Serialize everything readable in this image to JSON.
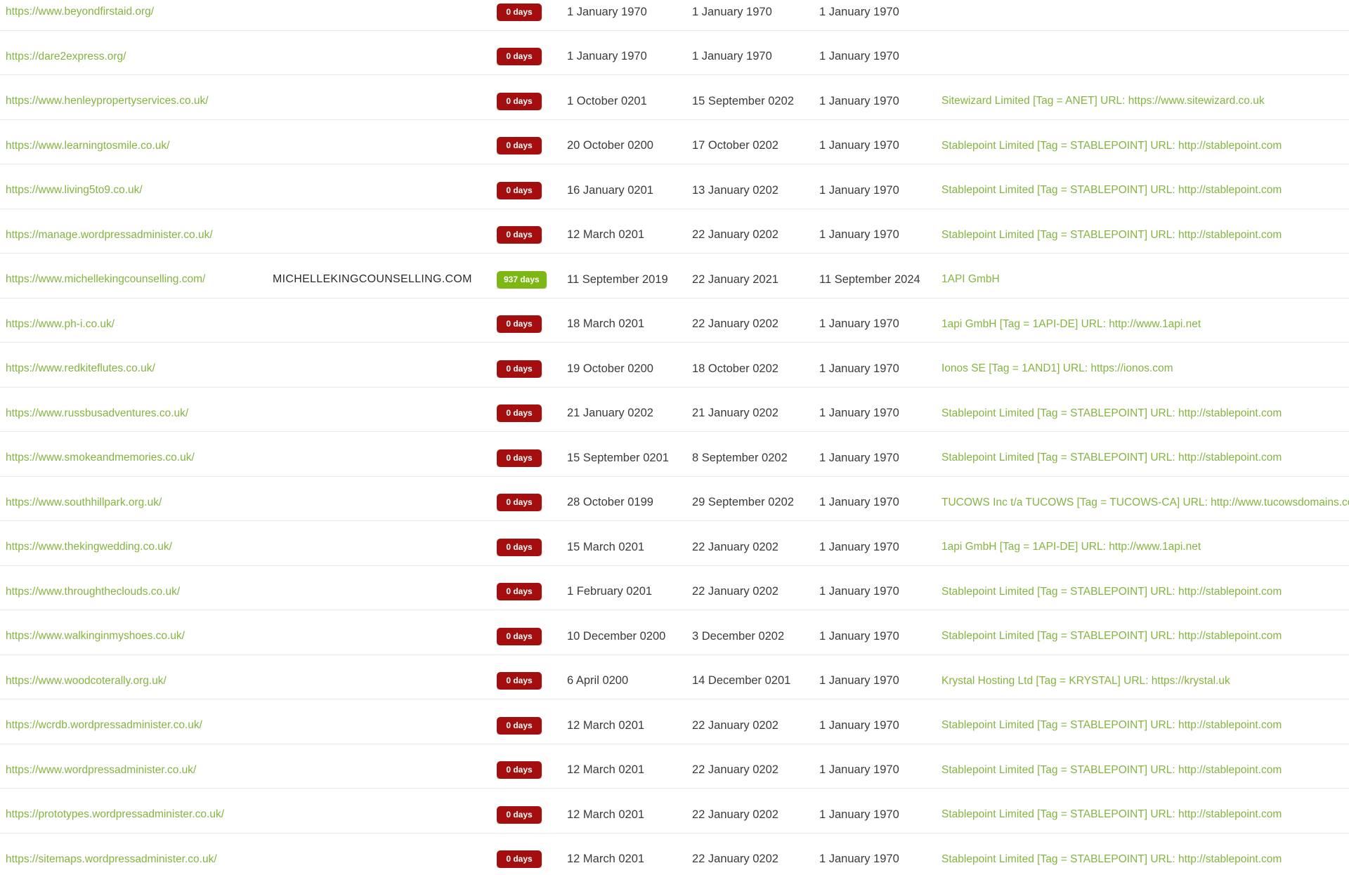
{
  "colors": {
    "link_green": "#85b440",
    "badge_red": "#a40e0e",
    "badge_green": "#7db714",
    "date_text": "#3b3b3b",
    "domain_text": "#2b2b2b",
    "row_border": "#e9e9e9"
  },
  "table": {
    "rows": [
      {
        "url": "https://www.beyondfirstaid.org/",
        "domain": "",
        "badge_label": "0 days",
        "badge_color": "badge_red",
        "date_a": "1 January 1970",
        "date_b": "1 January 1970",
        "date_c": "1 January 1970",
        "registrar": ""
      },
      {
        "url": "https://dare2express.org/",
        "domain": "",
        "badge_label": "0 days",
        "badge_color": "badge_red",
        "date_a": "1 January 1970",
        "date_b": "1 January 1970",
        "date_c": "1 January 1970",
        "registrar": ""
      },
      {
        "url": "https://www.henleypropertyservices.co.uk/",
        "domain": "",
        "badge_label": "0 days",
        "badge_color": "badge_red",
        "date_a": "1 October 0201",
        "date_b": "15 September 0202",
        "date_c": "1 January 1970",
        "registrar": "Sitewizard Limited [Tag = ANET] URL: https://www.sitewizard.co.uk"
      },
      {
        "url": "https://www.learningtosmile.co.uk/",
        "domain": "",
        "badge_label": "0 days",
        "badge_color": "badge_red",
        "date_a": "20 October 0200",
        "date_b": "17 October 0202",
        "date_c": "1 January 1970",
        "registrar": "Stablepoint Limited [Tag = STABLEPOINT] URL: http://stablepoint.com"
      },
      {
        "url": "https://www.living5to9.co.uk/",
        "domain": "",
        "badge_label": "0 days",
        "badge_color": "badge_red",
        "date_a": "16 January 0201",
        "date_b": "13 January 0202",
        "date_c": "1 January 1970",
        "registrar": "Stablepoint Limited [Tag = STABLEPOINT] URL: http://stablepoint.com"
      },
      {
        "url": "https://manage.wordpressadminister.co.uk/",
        "domain": "",
        "badge_label": "0 days",
        "badge_color": "badge_red",
        "date_a": "12 March 0201",
        "date_b": "22 January 0202",
        "date_c": "1 January 1970",
        "registrar": "Stablepoint Limited [Tag = STABLEPOINT] URL: http://stablepoint.com"
      },
      {
        "url": "https://www.michellekingcounselling.com/",
        "domain": "MICHELLEKINGCOUNSELLING.COM",
        "badge_label": "937 days",
        "badge_color": "badge_green",
        "date_a": "11 September 2019",
        "date_b": "22 January 2021",
        "date_c": "11 September 2024",
        "registrar": "1API GmbH"
      },
      {
        "url": "https://www.ph-i.co.uk/",
        "domain": "",
        "badge_label": "0 days",
        "badge_color": "badge_red",
        "date_a": "18 March 0201",
        "date_b": "22 January 0202",
        "date_c": "1 January 1970",
        "registrar": "1api GmbH [Tag = 1API-DE] URL: http://www.1api.net"
      },
      {
        "url": "https://www.redkiteflutes.co.uk/",
        "domain": "",
        "badge_label": "0 days",
        "badge_color": "badge_red",
        "date_a": "19 October 0200",
        "date_b": "18 October 0202",
        "date_c": "1 January 1970",
        "registrar": "Ionos SE [Tag = 1AND1] URL: https://ionos.com"
      },
      {
        "url": "https://www.russbusadventures.co.uk/",
        "domain": "",
        "badge_label": "0 days",
        "badge_color": "badge_red",
        "date_a": "21 January 0202",
        "date_b": "21 January 0202",
        "date_c": "1 January 1970",
        "registrar": "Stablepoint Limited [Tag = STABLEPOINT] URL: http://stablepoint.com"
      },
      {
        "url": "https://www.smokeandmemories.co.uk/",
        "domain": "",
        "badge_label": "0 days",
        "badge_color": "badge_red",
        "date_a": "15 September 0201",
        "date_b": "8 September 0202",
        "date_c": "1 January 1970",
        "registrar": "Stablepoint Limited [Tag = STABLEPOINT] URL: http://stablepoint.com"
      },
      {
        "url": "https://www.southhillpark.org.uk/",
        "domain": "",
        "badge_label": "0 days",
        "badge_color": "badge_red",
        "date_a": "28 October 0199",
        "date_b": "29 September 0202",
        "date_c": "1 January 1970",
        "registrar": "TUCOWS Inc t/a TUCOWS [Tag = TUCOWS-CA] URL: http://www.tucowsdomains.com"
      },
      {
        "url": "https://www.thekingwedding.co.uk/",
        "domain": "",
        "badge_label": "0 days",
        "badge_color": "badge_red",
        "date_a": "15 March 0201",
        "date_b": "22 January 0202",
        "date_c": "1 January 1970",
        "registrar": "1api GmbH [Tag = 1API-DE] URL: http://www.1api.net"
      },
      {
        "url": "https://www.throughtheclouds.co.uk/",
        "domain": "",
        "badge_label": "0 days",
        "badge_color": "badge_red",
        "date_a": "1 February 0201",
        "date_b": "22 January 0202",
        "date_c": "1 January 1970",
        "registrar": "Stablepoint Limited [Tag = STABLEPOINT] URL: http://stablepoint.com"
      },
      {
        "url": "https://www.walkinginmyshoes.co.uk/",
        "domain": "",
        "badge_label": "0 days",
        "badge_color": "badge_red",
        "date_a": "10 December 0200",
        "date_b": "3 December 0202",
        "date_c": "1 January 1970",
        "registrar": "Stablepoint Limited [Tag = STABLEPOINT] URL: http://stablepoint.com"
      },
      {
        "url": "https://www.woodcoterally.org.uk/",
        "domain": "",
        "badge_label": "0 days",
        "badge_color": "badge_red",
        "date_a": "6 April 0200",
        "date_b": "14 December 0201",
        "date_c": "1 January 1970",
        "registrar": "Krystal Hosting Ltd [Tag = KRYSTAL] URL: https://krystal.uk"
      },
      {
        "url": "https://wcrdb.wordpressadminister.co.uk/",
        "domain": "",
        "badge_label": "0 days",
        "badge_color": "badge_red",
        "date_a": "12 March 0201",
        "date_b": "22 January 0202",
        "date_c": "1 January 1970",
        "registrar": "Stablepoint Limited [Tag = STABLEPOINT] URL: http://stablepoint.com"
      },
      {
        "url": "https://www.wordpressadminister.co.uk/",
        "domain": "",
        "badge_label": "0 days",
        "badge_color": "badge_red",
        "date_a": "12 March 0201",
        "date_b": "22 January 0202",
        "date_c": "1 January 1970",
        "registrar": "Stablepoint Limited [Tag = STABLEPOINT] URL: http://stablepoint.com"
      },
      {
        "url": "https://prototypes.wordpressadminister.co.uk/",
        "domain": "",
        "badge_label": "0 days",
        "badge_color": "badge_red",
        "date_a": "12 March 0201",
        "date_b": "22 January 0202",
        "date_c": "1 January 1970",
        "registrar": "Stablepoint Limited [Tag = STABLEPOINT] URL: http://stablepoint.com"
      },
      {
        "url": "https://sitemaps.wordpressadminister.co.uk/",
        "domain": "",
        "badge_label": "0 days",
        "badge_color": "badge_red",
        "date_a": "12 March 0201",
        "date_b": "22 January 0202",
        "date_c": "1 January 1970",
        "registrar": "Stablepoint Limited [Tag = STABLEPOINT] URL: http://stablepoint.com"
      }
    ]
  }
}
